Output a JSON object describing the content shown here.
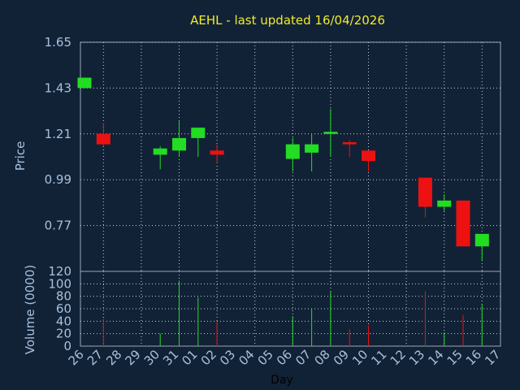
{
  "chart_data": {
    "type": "candlestick",
    "title": "AEHL - last updated 16/04/2026",
    "xlabel": "Day",
    "ylabel_price": "Price",
    "ylabel_volume": "Volume (0000)",
    "price_ticks": [
      "1.65",
      "1.43",
      "1.21",
      "0.99",
      "0.77"
    ],
    "price_ylim": [
      0.55,
      1.65
    ],
    "volume_ticks": [
      "120",
      "100",
      "80",
      "60",
      "40",
      "20",
      "0"
    ],
    "volume_ylim": [
      0,
      120
    ],
    "grid": true,
    "x_labels": [
      "26",
      "27",
      "28",
      "29",
      "30",
      "31",
      "01",
      "02",
      "03",
      "04",
      "05",
      "06",
      "07",
      "08",
      "09",
      "10",
      "11",
      "12",
      "13",
      "14",
      "15",
      "16",
      "17"
    ],
    "up_color": "#22dd22",
    "down_color": "#ee1111",
    "candles": [
      {
        "day": "26",
        "open": 1.43,
        "high": 1.48,
        "low": 1.43,
        "close": 1.48,
        "volume": 0
      },
      {
        "day": "27",
        "open": 1.21,
        "high": 1.26,
        "low": 1.15,
        "close": 1.16,
        "volume": 44
      },
      {
        "day": "30",
        "open": 1.11,
        "high": 1.15,
        "low": 1.04,
        "close": 1.14,
        "volume": 20
      },
      {
        "day": "31",
        "open": 1.13,
        "high": 1.27,
        "low": 1.1,
        "close": 1.19,
        "volume": 105
      },
      {
        "day": "01",
        "open": 1.19,
        "high": 1.24,
        "low": 1.1,
        "close": 1.24,
        "volume": 78
      },
      {
        "day": "02",
        "open": 1.13,
        "high": 1.16,
        "low": 1.07,
        "close": 1.11,
        "volume": 40
      },
      {
        "day": "06",
        "open": 1.09,
        "high": 1.19,
        "low": 1.03,
        "close": 1.16,
        "volume": 48
      },
      {
        "day": "07",
        "open": 1.12,
        "high": 1.21,
        "low": 1.03,
        "close": 1.16,
        "volume": 60
      },
      {
        "day": "08",
        "open": 1.21,
        "high": 1.33,
        "low": 1.1,
        "close": 1.22,
        "volume": 88
      },
      {
        "day": "09",
        "open": 1.17,
        "high": 1.18,
        "low": 1.1,
        "close": 1.16,
        "volume": 27
      },
      {
        "day": "10",
        "open": 1.13,
        "high": 1.13,
        "low": 1.03,
        "close": 1.08,
        "volume": 33
      },
      {
        "day": "13",
        "open": 1.0,
        "high": 1.0,
        "low": 0.81,
        "close": 0.86,
        "volume": 88
      },
      {
        "day": "14",
        "open": 0.86,
        "high": 0.92,
        "low": 0.84,
        "close": 0.89,
        "volume": 22
      },
      {
        "day": "15",
        "open": 0.89,
        "high": 0.89,
        "low": 0.67,
        "close": 0.67,
        "volume": 50
      },
      {
        "day": "16",
        "open": 0.67,
        "high": 0.73,
        "low": 0.6,
        "close": 0.73,
        "volume": 68
      }
    ]
  }
}
